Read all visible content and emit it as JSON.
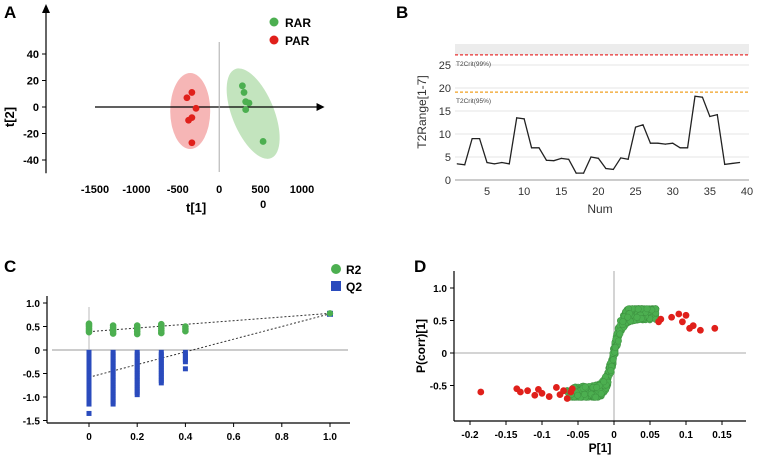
{
  "panel_letters": {
    "a": "A",
    "b": "B",
    "c": "C",
    "d": "D"
  },
  "colors": {
    "green": "#4caf50",
    "red": "#e0201b",
    "blue": "#2a4bbd",
    "pink_ellipse": "#f4a9a9",
    "green_ellipse": "#b9dfb3",
    "axis": "#000000",
    "orange_line": "#f0a020",
    "red_dash": "#e83030",
    "grid": "#dcdcdc"
  },
  "chart_data": [
    {
      "type": "scatter",
      "panel": "A",
      "xlabel": "t[1]",
      "ylabel": "t[2]",
      "x_sub_label": "0",
      "xlim": [
        -1500,
        1200
      ],
      "ylim": [
        -50,
        60
      ],
      "x_ticks": [
        -1500,
        -1000,
        -500,
        0,
        500,
        1000
      ],
      "y_ticks": [
        -40,
        -20,
        0,
        20,
        40
      ],
      "legend": [
        {
          "name": "RAR",
          "color": "#4caf50"
        },
        {
          "name": "PAR",
          "color": "#e0201b"
        }
      ],
      "series": [
        {
          "name": "RAR",
          "points": [
            [
              280,
              16
            ],
            [
              300,
              11
            ],
            [
              320,
              4
            ],
            [
              360,
              3
            ],
            [
              320,
              -2
            ],
            [
              530,
              -26
            ]
          ]
        },
        {
          "name": "PAR",
          "points": [
            [
              -330,
              11
            ],
            [
              -390,
              7
            ],
            [
              -280,
              -1
            ],
            [
              -330,
              -8
            ],
            [
              -370,
              -10
            ],
            [
              -330,
              -27
            ]
          ]
        }
      ],
      "ellipses": [
        {
          "group": "RAR",
          "cx": 410,
          "cy": -5,
          "rx": 230,
          "ry": 33,
          "angle": -18
        },
        {
          "group": "PAR",
          "cx": -350,
          "cy": -3,
          "rx": 110,
          "ry": 28,
          "angle": 0
        }
      ]
    },
    {
      "type": "line",
      "panel": "B",
      "xlabel": "Num",
      "ylabel": "T2Range[1-7]",
      "xlim": [
        0.5,
        41
      ],
      "ylim": [
        0,
        30
      ],
      "x_ticks": [
        5,
        10,
        15,
        20,
        25,
        30,
        35,
        40
      ],
      "y_ticks": [
        0,
        5,
        10,
        15,
        20,
        25
      ],
      "thresholds": [
        {
          "label": "T2Crit(99%)",
          "value": 27.2
        },
        {
          "label": "T2Crit(95%)",
          "value": 19.1
        }
      ],
      "x": [
        1,
        2,
        3,
        4,
        5,
        6,
        7,
        8,
        9,
        10,
        11,
        12,
        13,
        14,
        15,
        16,
        17,
        18,
        19,
        20,
        21,
        22,
        23,
        24,
        25,
        26,
        27,
        28,
        29,
        30,
        31,
        32,
        33,
        34,
        35,
        36,
        37,
        38,
        39
      ],
      "values": [
        3.5,
        3.3,
        9,
        9,
        3.8,
        3.5,
        3.8,
        3.5,
        13.5,
        13.3,
        7,
        7,
        4.3,
        4.2,
        4.7,
        4.5,
        1.5,
        1.5,
        5,
        4.7,
        2.5,
        2.3,
        4.8,
        4.5,
        11.5,
        12,
        8,
        8,
        7.8,
        8,
        7,
        7,
        18.2,
        18,
        13.8,
        14.2,
        3.4,
        3.6,
        3.8
      ]
    },
    {
      "type": "scatter",
      "panel": "C",
      "xlabel": "",
      "ylabel": "",
      "xlim": [
        -0.12,
        1.05
      ],
      "ylim": [
        -1.5,
        1.1
      ],
      "x_ticks": [
        0,
        0.2,
        0.4,
        0.6,
        0.8,
        1.0
      ],
      "x_tick_labels": [
        "0",
        "0.2",
        "0.4",
        "0.6",
        "0.8",
        "1.0"
      ],
      "y_ticks": [
        1.0,
        0.5,
        0,
        -0.5,
        -1.0,
        -1.5
      ],
      "y_tick_labels": [
        "1.0",
        "0.5",
        "0",
        "-0.5",
        "-1.0",
        "-1.5"
      ],
      "legend": [
        {
          "name": "R2",
          "color": "#4caf50"
        },
        {
          "name": "Q2",
          "color": "#2a4bbd"
        }
      ],
      "r2_columns": [
        {
          "x": 0.0,
          "values": [
            0.38,
            0.42,
            0.46,
            0.5,
            0.53,
            0.56
          ]
        },
        {
          "x": 0.1,
          "values": [
            0.35,
            0.4,
            0.44,
            0.48,
            0.52
          ]
        },
        {
          "x": 0.2,
          "values": [
            0.34,
            0.39,
            0.44,
            0.48,
            0.52
          ]
        },
        {
          "x": 0.3,
          "values": [
            0.36,
            0.41,
            0.46,
            0.51,
            0.55
          ]
        },
        {
          "x": 0.4,
          "values": [
            0.4,
            0.45,
            0.5
          ]
        }
      ],
      "q2_columns": [
        {
          "x": 0.0,
          "from": -1.15,
          "to": -0.05,
          "extra": [
            -1.35
          ]
        },
        {
          "x": 0.1,
          "from": -1.15,
          "to": -0.05,
          "extra": []
        },
        {
          "x": 0.2,
          "from": -0.95,
          "to": -0.05,
          "extra": []
        },
        {
          "x": 0.3,
          "from": -0.7,
          "to": -0.05,
          "extra": []
        },
        {
          "x": 0.4,
          "from": -0.25,
          "to": -0.05,
          "extra": [
            -0.4
          ]
        }
      ],
      "original": {
        "x": 1.0,
        "r2": 0.78,
        "q2": 0.77
      },
      "r2_intercept": 0.39,
      "q2_intercept": -0.58
    },
    {
      "type": "scatter",
      "panel": "D",
      "xlabel": "P[1]",
      "ylabel": "P(corr)[1]",
      "xlim": [
        -0.21,
        0.17
      ],
      "ylim": [
        -0.73,
        1.12
      ],
      "x_ticks": [
        -0.2,
        -0.15,
        -0.1,
        -0.05,
        0,
        0.05,
        0.1,
        0.15
      ],
      "x_tick_labels": [
        "-0.2",
        "-0.15",
        "-0.1",
        "-0.05",
        "0",
        "0.05",
        "0.1",
        "0.15"
      ],
      "y_ticks": [
        1.0,
        0.5,
        0,
        -0.5
      ],
      "y_tick_labels": [
        "1.0",
        "0.5",
        "0",
        "-0.5"
      ],
      "red_points": [
        [
          -0.185,
          -0.6
        ],
        [
          -0.135,
          -0.55
        ],
        [
          -0.13,
          -0.6
        ],
        [
          -0.12,
          -0.58
        ],
        [
          -0.11,
          -0.65
        ],
        [
          -0.105,
          -0.56
        ],
        [
          -0.1,
          -0.62
        ],
        [
          -0.09,
          -0.67
        ],
        [
          -0.08,
          -0.53
        ],
        [
          -0.075,
          -0.64
        ],
        [
          -0.07,
          -0.58
        ],
        [
          -0.065,
          -0.7
        ],
        [
          -0.06,
          -0.6
        ],
        [
          -0.058,
          -0.55
        ],
        [
          0.062,
          0.48
        ],
        [
          0.065,
          0.52
        ],
        [
          0.08,
          0.55
        ],
        [
          0.09,
          0.6
        ],
        [
          0.095,
          0.48
        ],
        [
          0.1,
          0.58
        ],
        [
          0.105,
          0.38
        ],
        [
          0.11,
          0.42
        ],
        [
          0.12,
          0.35
        ],
        [
          0.14,
          0.38
        ]
      ]
    }
  ]
}
